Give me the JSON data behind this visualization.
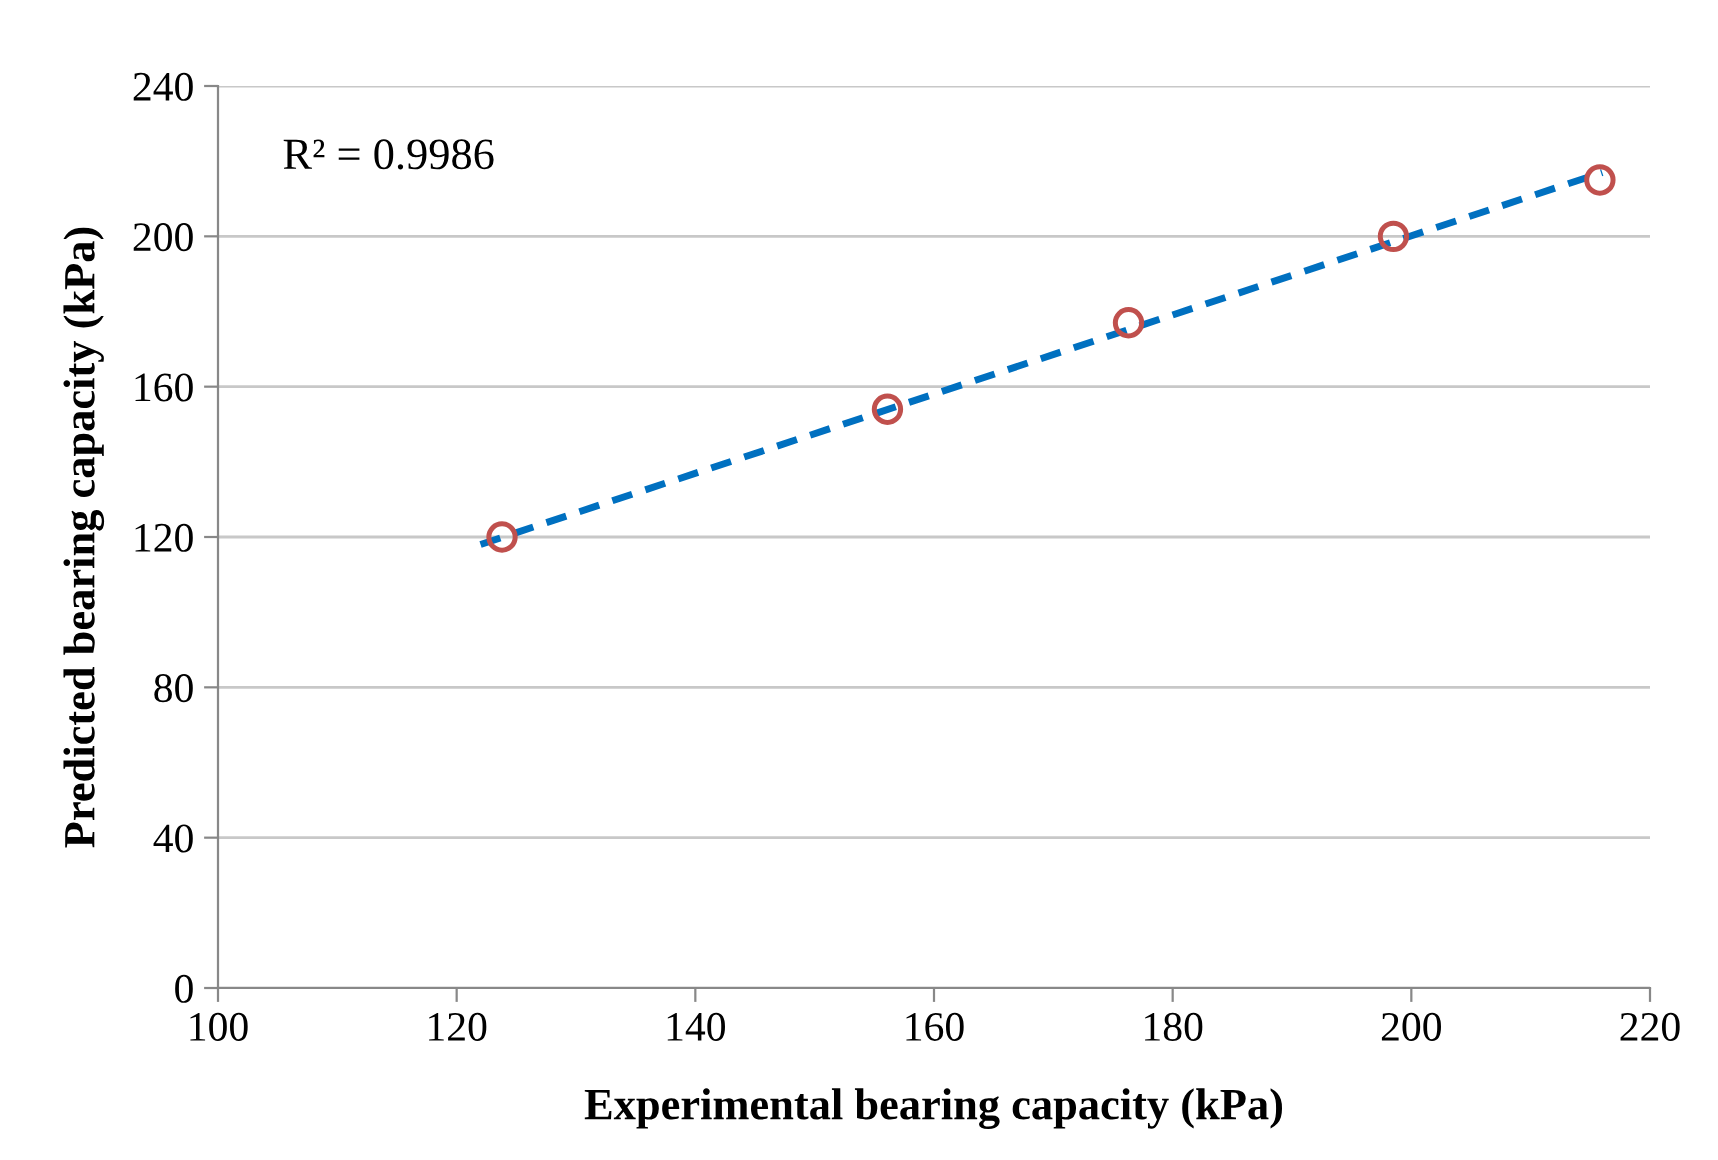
{
  "chart_data": {
    "type": "scatter",
    "xlabel": "Experimental bearing capacity (kPa)",
    "ylabel": "Predicted bearing capacity (kPa)",
    "annotations": [
      "R² = 0.9986"
    ],
    "xlim": [
      100,
      220
    ],
    "xticks": [
      100,
      120,
      140,
      160,
      180,
      200,
      220
    ],
    "ylim": [
      0,
      240
    ],
    "yticks": [
      0,
      40,
      80,
      120,
      160,
      200,
      240
    ],
    "grid": "y",
    "legend": false,
    "series": [
      {
        "color": "#c0504d",
        "marker": "circle",
        "x": [
          123.8,
          156.1,
          176.3,
          198.5,
          215.8
        ],
        "values": [
          120,
          154,
          177,
          200,
          215
        ]
      },
      {
        "type": "line",
        "color": "#0070c0",
        "line_style": "dashed",
        "marker": "none",
        "x": [
          122,
          216
        ],
        "values": [
          118,
          217
        ]
      }
    ]
  }
}
